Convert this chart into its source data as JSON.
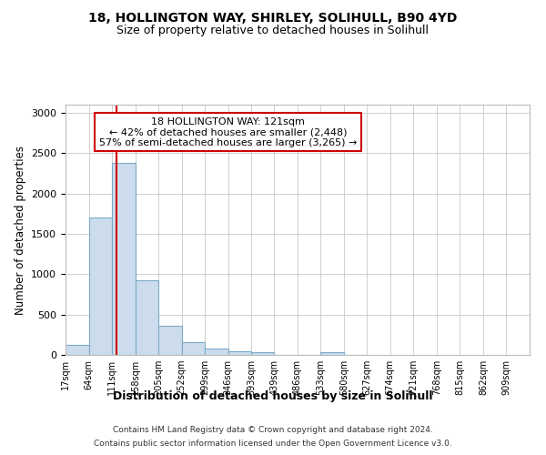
{
  "title1": "18, HOLLINGTON WAY, SHIRLEY, SOLIHULL, B90 4YD",
  "title2": "Size of property relative to detached houses in Solihull",
  "xlabel": "Distribution of detached houses by size in Solihull",
  "ylabel": "Number of detached properties",
  "bin_edges": [
    17,
    64,
    111,
    158,
    205,
    252,
    299,
    346,
    393,
    439,
    486,
    533,
    580,
    627,
    674,
    721,
    768,
    815,
    862,
    909,
    956
  ],
  "bar_heights": [
    120,
    1700,
    2380,
    920,
    360,
    160,
    80,
    50,
    30,
    5,
    5,
    30,
    5,
    0,
    0,
    0,
    0,
    0,
    0,
    0
  ],
  "bar_color": "#ccdcec",
  "bar_edge_color": "#7aaac8",
  "bar_linewidth": 0.8,
  "vline_x": 121,
  "vline_color": "#cc0000",
  "vline_linewidth": 1.5,
  "annotation_lines": [
    "18 HOLLINGTON WAY: 121sqm",
    "← 42% of detached houses are smaller (2,448)",
    "57% of semi-detached houses are larger (3,265) →"
  ],
  "annotation_box_color": "#ffffff",
  "annotation_box_edge": "#cc0000",
  "ylim": [
    0,
    3100
  ],
  "yticks": [
    0,
    500,
    1000,
    1500,
    2000,
    2500,
    3000
  ],
  "footer1": "Contains HM Land Registry data © Crown copyright and database right 2024.",
  "footer2": "Contains public sector information licensed under the Open Government Licence v3.0.",
  "bg_color": "#ffffff",
  "grid_color": "#c8c8c8"
}
